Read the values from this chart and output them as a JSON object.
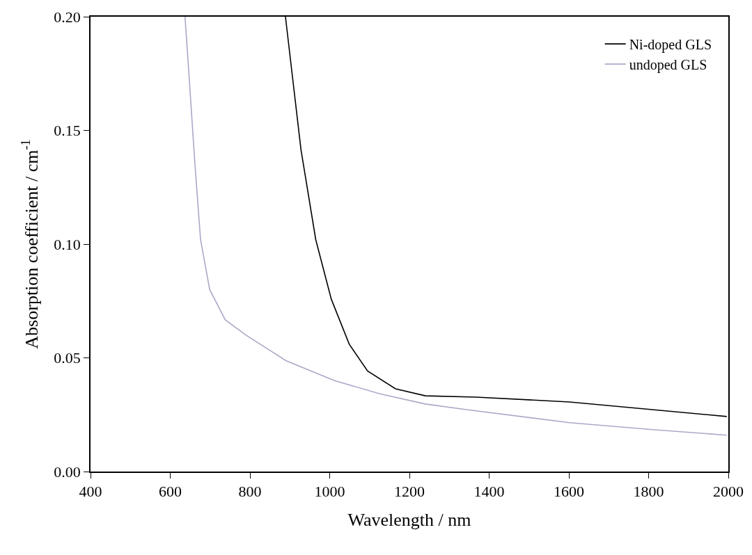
{
  "chart_data": {
    "type": "line",
    "xlabel": "Wavelength / nm",
    "ylabel": "Absorption coefficient / cm$^{-1}$",
    "xlim": [
      400,
      2000
    ],
    "xticks": [
      400,
      600,
      800,
      1000,
      1200,
      1400,
      1600,
      1800,
      2000
    ],
    "ylim": [
      0,
      0.2
    ],
    "yticks": [
      {
        "value": 0,
        "label": "0.00"
      },
      0.05,
      {
        "value": 0.1,
        "label": "0.10"
      },
      0.15,
      {
        "value": 0.2,
        "label": "0.20"
      }
    ],
    "grid": false,
    "legend": "top right",
    "marker": "none",
    "line_style": "solid",
    "series": [
      {
        "name": "Ni-doped GLS",
        "color": "#000000",
        "x": [
          889,
          897,
          928,
          965,
          1004,
          1049,
          1095,
          1165,
          1240,
          1367,
          1602,
          1805,
          1996
        ],
        "values": [
          0.2,
          0.188,
          0.1415,
          0.102,
          0.0758,
          0.056,
          0.0442,
          0.0364,
          0.0333,
          0.0327,
          0.0306,
          0.0273,
          0.0242
        ]
      },
      {
        "name": "undoped GLS",
        "color": "#a9a9c8",
        "x": [
          637,
          647,
          662,
          676,
          699,
          738,
          790,
          890,
          1012,
          1126,
          1240,
          1340,
          1602,
          1805,
          1996
        ],
        "values": [
          0.2,
          0.1745,
          0.135,
          0.102,
          0.08,
          0.0667,
          0.06,
          0.0488,
          0.04,
          0.0342,
          0.0297,
          0.0273,
          0.0215,
          0.0185,
          0.016
        ]
      }
    ]
  }
}
